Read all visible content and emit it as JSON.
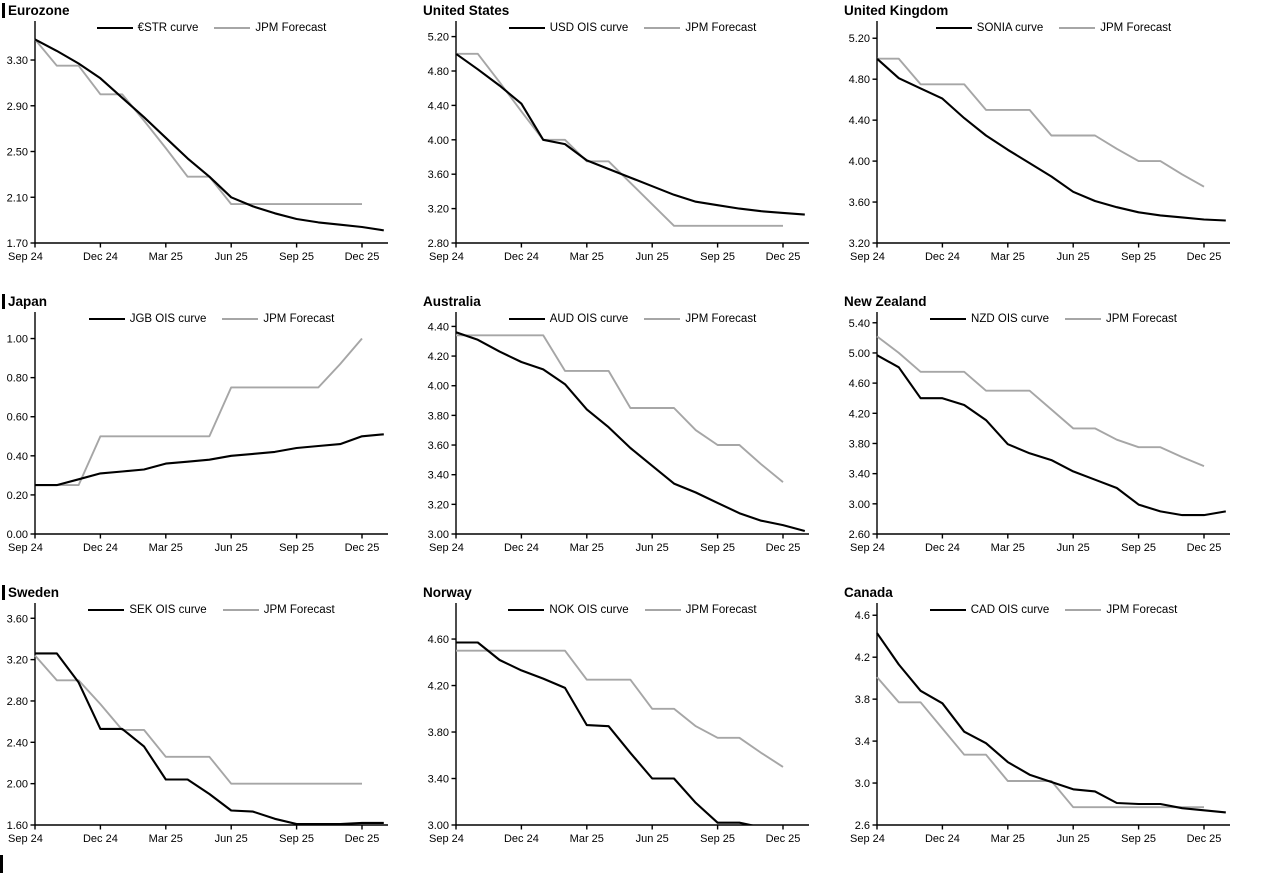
{
  "page": {
    "background": "#ffffff"
  },
  "colors": {
    "market_line": "#000000",
    "forecast_line": "#a6a6a6",
    "axis": "#000000",
    "text": "#000000"
  },
  "x_tick_labels": [
    "Sep 24",
    "Dec 24",
    "Mar 25",
    "Jun 25",
    "Sep 25",
    "Dec 25"
  ],
  "chart_data": [
    {
      "type": "line",
      "title": "Eurozone",
      "left_section_bar": true,
      "xlabel": "",
      "ylabel": "",
      "x_tick_labels": [
        "Sep 24",
        "Dec 24",
        "Mar 25",
        "Jun 25",
        "Sep 25",
        "Dec 25"
      ],
      "ylim": [
        1.7,
        3.58
      ],
      "yticks": [
        1.7,
        2.1,
        2.5,
        2.9,
        3.3
      ],
      "ytick_decimals": 2,
      "series": [
        {
          "name": "€STR curve",
          "role": "market",
          "values": [
            3.48,
            3.38,
            3.27,
            3.14,
            2.97,
            2.8,
            2.62,
            2.44,
            2.28,
            2.1,
            2.02,
            1.96,
            1.91,
            1.88,
            1.86,
            1.84,
            1.81
          ]
        },
        {
          "name": "JPM Forecast",
          "role": "forecast",
          "values": [
            3.48,
            3.25,
            3.25,
            3.0,
            3.0,
            2.77,
            2.53,
            2.28,
            2.28,
            2.04,
            2.04,
            2.04,
            2.04,
            2.04,
            2.04,
            2.04
          ]
        }
      ]
    },
    {
      "type": "line",
      "title": "United States",
      "left_section_bar": false,
      "xlabel": "",
      "ylabel": "",
      "x_tick_labels": [
        "Sep 24",
        "Dec 24",
        "Mar 25",
        "Jun 25",
        "Sep 25",
        "Dec 25"
      ],
      "ylim": [
        2.8,
        5.3
      ],
      "yticks": [
        2.8,
        3.2,
        3.6,
        4.0,
        4.4,
        4.8,
        5.2
      ],
      "ytick_decimals": 2,
      "series": [
        {
          "name": "USD OIS curve",
          "role": "market",
          "values": [
            5.0,
            4.82,
            4.63,
            4.42,
            4.0,
            3.95,
            3.76,
            3.66,
            3.56,
            3.46,
            3.36,
            3.28,
            3.24,
            3.2,
            3.17,
            3.15,
            3.13
          ]
        },
        {
          "name": "JPM Forecast",
          "role": "forecast",
          "values": [
            5.0,
            5.0,
            4.67,
            4.33,
            4.0,
            4.0,
            3.75,
            3.75,
            3.5,
            3.25,
            3.0,
            3.0,
            3.0,
            3.0,
            3.0,
            3.0
          ]
        }
      ]
    },
    {
      "type": "line",
      "title": "United Kingdom",
      "left_section_bar": false,
      "xlabel": "",
      "ylabel": "",
      "x_tick_labels": [
        "Sep 24",
        "Dec 24",
        "Mar 25",
        "Jun 25",
        "Sep 25",
        "Dec 25"
      ],
      "ylim": [
        3.2,
        5.3
      ],
      "yticks": [
        3.2,
        3.6,
        4.0,
        4.4,
        4.8,
        5.2
      ],
      "ytick_decimals": 2,
      "series": [
        {
          "name": "SONIA curve",
          "role": "market",
          "values": [
            5.0,
            4.81,
            4.71,
            4.61,
            4.42,
            4.25,
            4.11,
            3.98,
            3.85,
            3.7,
            3.61,
            3.55,
            3.5,
            3.47,
            3.45,
            3.43,
            3.42
          ]
        },
        {
          "name": "JPM Forecast",
          "role": "forecast",
          "values": [
            5.0,
            5.0,
            4.75,
            4.75,
            4.75,
            4.5,
            4.5,
            4.5,
            4.25,
            4.25,
            4.25,
            4.12,
            4.0,
            4.0,
            3.87,
            3.75
          ]
        }
      ]
    },
    {
      "type": "line",
      "title": "Japan",
      "left_section_bar": true,
      "xlabel": "",
      "ylabel": "",
      "x_tick_labels": [
        "Sep 24",
        "Dec 24",
        "Mar 25",
        "Jun 25",
        "Sep 25",
        "Dec 25"
      ],
      "ylim": [
        0.0,
        1.1
      ],
      "yticks": [
        0.0,
        0.2,
        0.4,
        0.6,
        0.8,
        1.0
      ],
      "ytick_decimals": 2,
      "series": [
        {
          "name": "JGB OIS curve",
          "role": "market",
          "values": [
            0.25,
            0.25,
            0.28,
            0.31,
            0.32,
            0.33,
            0.36,
            0.37,
            0.38,
            0.4,
            0.41,
            0.42,
            0.44,
            0.45,
            0.46,
            0.5,
            0.51
          ]
        },
        {
          "name": "JPM Forecast",
          "role": "forecast",
          "values": [
            0.25,
            0.25,
            0.25,
            0.5,
            0.5,
            0.5,
            0.5,
            0.5,
            0.5,
            0.75,
            0.75,
            0.75,
            0.75,
            0.75,
            0.87,
            1.0
          ]
        }
      ]
    },
    {
      "type": "line",
      "title": "Australia",
      "left_section_bar": false,
      "xlabel": "",
      "ylabel": "",
      "x_tick_labels": [
        "Sep 24",
        "Dec 24",
        "Mar 25",
        "Jun 25",
        "Sep 25",
        "Dec 25"
      ],
      "ylim": [
        3.0,
        4.45
      ],
      "yticks": [
        3.0,
        3.2,
        3.4,
        3.6,
        3.8,
        4.0,
        4.2,
        4.4
      ],
      "ytick_decimals": 2,
      "series": [
        {
          "name": "AUD OIS curve",
          "role": "market",
          "values": [
            4.36,
            4.31,
            4.23,
            4.16,
            4.11,
            4.01,
            3.84,
            3.72,
            3.58,
            3.46,
            3.34,
            3.28,
            3.21,
            3.14,
            3.09,
            3.06,
            3.02
          ]
        },
        {
          "name": "JPM Forecast",
          "role": "forecast",
          "values": [
            4.34,
            4.34,
            4.34,
            4.34,
            4.34,
            4.1,
            4.1,
            4.1,
            3.85,
            3.85,
            3.85,
            3.7,
            3.6,
            3.6,
            3.47,
            3.35
          ]
        }
      ]
    },
    {
      "type": "line",
      "title": "New Zealand",
      "left_section_bar": false,
      "xlabel": "",
      "ylabel": "",
      "x_tick_labels": [
        "Sep 24",
        "Dec 24",
        "Mar 25",
        "Jun 25",
        "Sep 25",
        "Dec 25"
      ],
      "ylim": [
        2.6,
        5.45
      ],
      "yticks": [
        2.6,
        3.0,
        3.4,
        3.8,
        4.2,
        4.6,
        5.0,
        5.4
      ],
      "ytick_decimals": 2,
      "series": [
        {
          "name": "NZD OIS curve",
          "role": "market",
          "values": [
            4.97,
            4.81,
            4.4,
            4.4,
            4.31,
            4.11,
            3.79,
            3.67,
            3.58,
            3.43,
            3.32,
            3.21,
            2.99,
            2.9,
            2.85,
            2.85,
            2.9
          ]
        },
        {
          "name": "JPM Forecast",
          "role": "forecast",
          "values": [
            5.22,
            5.0,
            4.75,
            4.75,
            4.75,
            4.5,
            4.5,
            4.5,
            4.25,
            4.0,
            4.0,
            3.85,
            3.75,
            3.75,
            3.62,
            3.5
          ]
        }
      ]
    },
    {
      "type": "line",
      "title": "Sweden",
      "left_section_bar": true,
      "xlabel": "",
      "ylabel": "",
      "x_tick_labels": [
        "Sep 24",
        "Dec 24",
        "Mar 25",
        "Jun 25",
        "Sep 25",
        "Dec 25"
      ],
      "ylim": [
        1.6,
        3.68
      ],
      "yticks": [
        1.6,
        2.0,
        2.4,
        2.8,
        3.2,
        3.6
      ],
      "ytick_decimals": 2,
      "series": [
        {
          "name": "SEK OIS curve",
          "role": "market",
          "values": [
            3.26,
            3.26,
            2.98,
            2.53,
            2.53,
            2.36,
            2.04,
            2.04,
            1.9,
            1.74,
            1.73,
            1.66,
            1.61,
            1.61,
            1.61,
            1.62,
            1.62
          ]
        },
        {
          "name": "JPM Forecast",
          "role": "forecast",
          "values": [
            3.24,
            3.0,
            3.0,
            2.77,
            2.52,
            2.52,
            2.26,
            2.26,
            2.26,
            2.0,
            2.0,
            2.0,
            2.0,
            2.0,
            2.0,
            2.0
          ]
        }
      ]
    },
    {
      "type": "line",
      "title": "Norway",
      "left_section_bar": false,
      "xlabel": "",
      "ylabel": "",
      "x_tick_labels": [
        "Sep 24",
        "Dec 24",
        "Mar 25",
        "Jun 25",
        "Sep 25",
        "Dec 25"
      ],
      "ylim": [
        3.0,
        4.85
      ],
      "yticks": [
        3.0,
        3.4,
        3.8,
        4.2,
        4.6
      ],
      "ytick_decimals": 2,
      "series": [
        {
          "name": "NOK OIS curve",
          "role": "market",
          "values": [
            4.57,
            4.57,
            4.42,
            4.33,
            4.26,
            4.18,
            3.86,
            3.85,
            3.62,
            3.4,
            3.4,
            3.19,
            3.02,
            3.02,
            2.98
          ]
        },
        {
          "name": "JPM Forecast",
          "role": "forecast",
          "values": [
            4.5,
            4.5,
            4.5,
            4.5,
            4.5,
            4.5,
            4.25,
            4.25,
            4.25,
            4.0,
            4.0,
            3.85,
            3.75,
            3.75,
            3.62,
            3.5
          ]
        }
      ]
    },
    {
      "type": "line",
      "title": "Canada",
      "left_section_bar": false,
      "xlabel": "",
      "ylabel": "",
      "x_tick_labels": [
        "Sep 24",
        "Dec 24",
        "Mar 25",
        "Jun 25",
        "Sep 25",
        "Dec 25"
      ],
      "ylim": [
        2.6,
        4.65
      ],
      "yticks": [
        2.6,
        3.0,
        3.4,
        3.8,
        4.2,
        4.6
      ],
      "ytick_decimals": 1,
      "series": [
        {
          "name": "CAD OIS curve",
          "role": "market",
          "values": [
            4.43,
            4.13,
            3.88,
            3.76,
            3.49,
            3.38,
            3.2,
            3.08,
            3.01,
            2.94,
            2.92,
            2.81,
            2.8,
            2.8,
            2.76,
            2.74,
            2.72
          ]
        },
        {
          "name": "JPM Forecast",
          "role": "forecast",
          "values": [
            4.01,
            3.77,
            3.77,
            3.52,
            3.27,
            3.27,
            3.02,
            3.02,
            3.02,
            2.77,
            2.77,
            2.77,
            2.77,
            2.77,
            2.77,
            2.77
          ]
        }
      ]
    }
  ],
  "footer": {
    "next_section_stub": true
  }
}
